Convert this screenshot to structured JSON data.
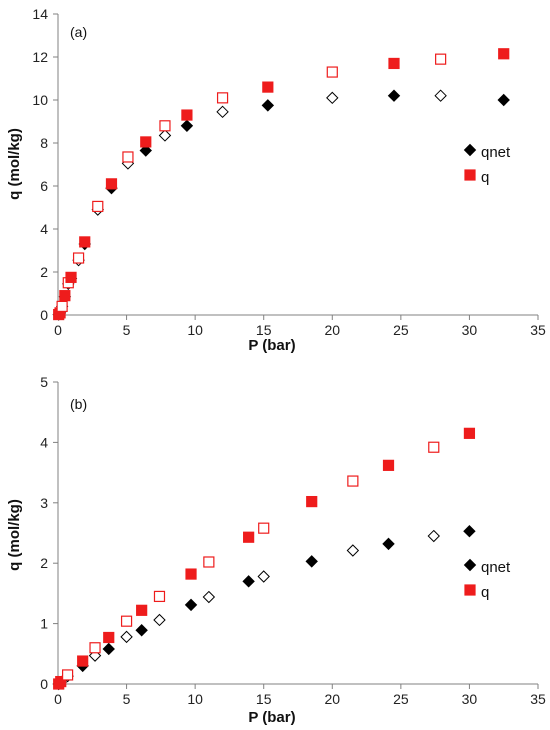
{
  "colors": {
    "filled_diamond": "#000000",
    "open_diamond_stroke": "#000000",
    "filled_square": "#ee1c1c",
    "open_square_stroke": "#ee1c1c",
    "axis": "#808080"
  },
  "chart_data": [
    {
      "type": "scatter",
      "panel_label": "(a)",
      "xlabel": "P (bar)",
      "ylabel": "q (mol/kg)",
      "xlim": [
        0,
        35
      ],
      "ylim": [
        0,
        14
      ],
      "x_ticks": [
        0,
        5,
        10,
        15,
        20,
        25,
        30,
        35
      ],
      "y_ticks": [
        0,
        2,
        4,
        6,
        8,
        10,
        12,
        14
      ],
      "legend_position": "right-middle",
      "series": [
        {
          "name": "qnet",
          "marker": "diamond",
          "points": [
            {
              "x": 0.05,
              "y": 0.02,
              "filled": true
            },
            {
              "x": 0.15,
              "y": 0.1,
              "filled": true
            },
            {
              "x": 0.3,
              "y": 0.4,
              "filled": false
            },
            {
              "x": 0.5,
              "y": 0.85,
              "filled": true
            },
            {
              "x": 0.75,
              "y": 1.45,
              "filled": false
            },
            {
              "x": 0.95,
              "y": 1.7,
              "filled": true
            },
            {
              "x": 1.5,
              "y": 2.55,
              "filled": false
            },
            {
              "x": 1.95,
              "y": 3.3,
              "filled": true
            },
            {
              "x": 2.9,
              "y": 4.9,
              "filled": false
            },
            {
              "x": 3.9,
              "y": 5.9,
              "filled": true
            },
            {
              "x": 5.1,
              "y": 7.05,
              "filled": false
            },
            {
              "x": 6.4,
              "y": 7.65,
              "filled": true
            },
            {
              "x": 7.8,
              "y": 8.35,
              "filled": false
            },
            {
              "x": 9.4,
              "y": 8.8,
              "filled": true
            },
            {
              "x": 12.0,
              "y": 9.45,
              "filled": false
            },
            {
              "x": 15.3,
              "y": 9.75,
              "filled": true
            },
            {
              "x": 20.0,
              "y": 10.1,
              "filled": false
            },
            {
              "x": 24.5,
              "y": 10.2,
              "filled": true
            },
            {
              "x": 27.9,
              "y": 10.2,
              "filled": false
            },
            {
              "x": 32.5,
              "y": 10.0,
              "filled": true
            }
          ]
        },
        {
          "name": "q",
          "marker": "square",
          "points": [
            {
              "x": 0.05,
              "y": 0.02,
              "filled": true
            },
            {
              "x": 0.15,
              "y": 0.1,
              "filled": true
            },
            {
              "x": 0.3,
              "y": 0.4,
              "filled": false
            },
            {
              "x": 0.5,
              "y": 0.9,
              "filled": true
            },
            {
              "x": 0.75,
              "y": 1.5,
              "filled": false
            },
            {
              "x": 0.95,
              "y": 1.75,
              "filled": true
            },
            {
              "x": 1.5,
              "y": 2.65,
              "filled": false
            },
            {
              "x": 1.95,
              "y": 3.4,
              "filled": true
            },
            {
              "x": 2.9,
              "y": 5.05,
              "filled": false
            },
            {
              "x": 3.9,
              "y": 6.1,
              "filled": true
            },
            {
              "x": 5.1,
              "y": 7.35,
              "filled": false
            },
            {
              "x": 6.4,
              "y": 8.05,
              "filled": true
            },
            {
              "x": 7.8,
              "y": 8.8,
              "filled": false
            },
            {
              "x": 9.4,
              "y": 9.3,
              "filled": true
            },
            {
              "x": 12.0,
              "y": 10.1,
              "filled": false
            },
            {
              "x": 15.3,
              "y": 10.6,
              "filled": true
            },
            {
              "x": 20.0,
              "y": 11.3,
              "filled": false
            },
            {
              "x": 24.5,
              "y": 11.7,
              "filled": true
            },
            {
              "x": 27.9,
              "y": 11.9,
              "filled": false
            },
            {
              "x": 32.5,
              "y": 12.15,
              "filled": true
            }
          ]
        }
      ]
    },
    {
      "type": "scatter",
      "panel_label": "(b)",
      "xlabel": "P (bar)",
      "ylabel": "q (mol/kg)",
      "xlim": [
        0,
        35
      ],
      "ylim": [
        0,
        5
      ],
      "x_ticks": [
        0,
        5,
        10,
        15,
        20,
        25,
        30,
        35
      ],
      "y_ticks": [
        0,
        1,
        2,
        3,
        4,
        5
      ],
      "legend_position": "right-lower",
      "series": [
        {
          "name": "qnet",
          "marker": "diamond",
          "points": [
            {
              "x": 0.05,
              "y": 0.0,
              "filled": true
            },
            {
              "x": 0.2,
              "y": 0.03,
              "filled": true
            },
            {
              "x": 0.7,
              "y": 0.13,
              "filled": false
            },
            {
              "x": 1.8,
              "y": 0.3,
              "filled": true
            },
            {
              "x": 2.7,
              "y": 0.47,
              "filled": false
            },
            {
              "x": 3.7,
              "y": 0.58,
              "filled": true
            },
            {
              "x": 5.0,
              "y": 0.78,
              "filled": false
            },
            {
              "x": 6.1,
              "y": 0.89,
              "filled": true
            },
            {
              "x": 7.4,
              "y": 1.06,
              "filled": false
            },
            {
              "x": 9.7,
              "y": 1.31,
              "filled": true
            },
            {
              "x": 11.0,
              "y": 1.44,
              "filled": false
            },
            {
              "x": 13.9,
              "y": 1.7,
              "filled": true
            },
            {
              "x": 15.0,
              "y": 1.78,
              "filled": false
            },
            {
              "x": 18.5,
              "y": 2.03,
              "filled": true
            },
            {
              "x": 21.5,
              "y": 2.21,
              "filled": false
            },
            {
              "x": 24.1,
              "y": 2.32,
              "filled": true
            },
            {
              "x": 27.4,
              "y": 2.45,
              "filled": false
            },
            {
              "x": 30.0,
              "y": 2.53,
              "filled": true
            }
          ]
        },
        {
          "name": "q",
          "marker": "square",
          "points": [
            {
              "x": 0.05,
              "y": 0.0,
              "filled": true
            },
            {
              "x": 0.2,
              "y": 0.04,
              "filled": true
            },
            {
              "x": 0.7,
              "y": 0.15,
              "filled": false
            },
            {
              "x": 1.8,
              "y": 0.38,
              "filled": true
            },
            {
              "x": 2.7,
              "y": 0.6,
              "filled": false
            },
            {
              "x": 3.7,
              "y": 0.77,
              "filled": true
            },
            {
              "x": 5.0,
              "y": 1.04,
              "filled": false
            },
            {
              "x": 6.1,
              "y": 1.22,
              "filled": true
            },
            {
              "x": 7.4,
              "y": 1.45,
              "filled": false
            },
            {
              "x": 9.7,
              "y": 1.82,
              "filled": true
            },
            {
              "x": 11.0,
              "y": 2.02,
              "filled": false
            },
            {
              "x": 13.9,
              "y": 2.43,
              "filled": true
            },
            {
              "x": 15.0,
              "y": 2.58,
              "filled": false
            },
            {
              "x": 18.5,
              "y": 3.02,
              "filled": true
            },
            {
              "x": 21.5,
              "y": 3.36,
              "filled": false
            },
            {
              "x": 24.1,
              "y": 3.62,
              "filled": true
            },
            {
              "x": 27.4,
              "y": 3.92,
              "filled": false
            },
            {
              "x": 30.0,
              "y": 4.15,
              "filled": true
            }
          ]
        }
      ]
    }
  ]
}
